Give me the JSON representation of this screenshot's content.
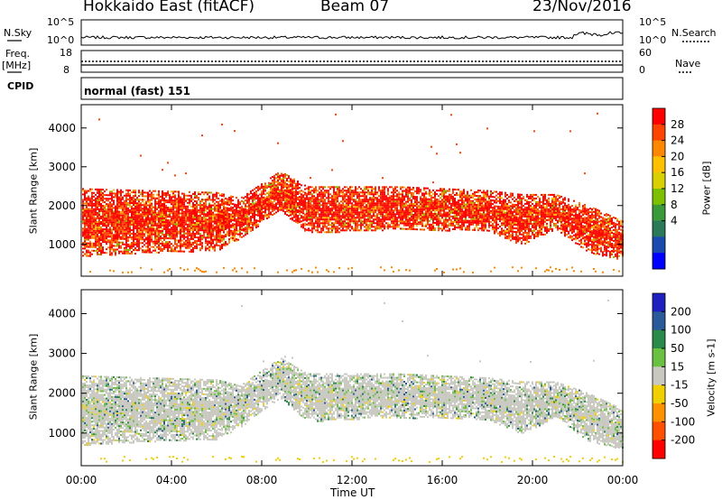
{
  "header": {
    "title_left": "Hokkaido East (fitACF)",
    "title_center": "Beam 07",
    "title_right": "23/Nov/2016"
  },
  "strips": {
    "nsky_label": "N.Sky",
    "nsky_ticks": [
      "10^5",
      "10^0"
    ],
    "nsearch_label": "N.Search",
    "nsearch_ticks": [
      "10^5",
      "10^0"
    ],
    "freq_label": "Freq.",
    "freq_unit": "[MHz]",
    "freq_ticks": [
      "18",
      "8"
    ],
    "nave_label": "Nave",
    "nave_ticks": [
      "60",
      "0"
    ],
    "cpid_label": "CPID",
    "cpid_value": "normal (fast) 151"
  },
  "chart_data": [
    {
      "type": "heatmap",
      "name": "power",
      "ylabel": "Slant Range [km]",
      "yticks": [
        "4000",
        "3000",
        "2000",
        "1000"
      ],
      "ylim": [
        180,
        4600
      ],
      "colorbar": {
        "label": "Power [dB]",
        "ticks": [
          "28",
          "24",
          "20",
          "16",
          "12",
          "8",
          "4"
        ],
        "colors": [
          "#ff0000",
          "#ff4400",
          "#ff8800",
          "#ffc000",
          "#d8d000",
          "#7cc000",
          "#3a9a3a",
          "#2a7a5a",
          "#1a4ab0",
          "#0000ff"
        ]
      },
      "bands": [
        {
          "hour": 0,
          "lower_km": 700,
          "upper_km": 2450
        },
        {
          "hour": 3,
          "lower_km": 800,
          "upper_km": 2400
        },
        {
          "hour": 6,
          "lower_km": 850,
          "upper_km": 2350
        },
        {
          "hour": 7,
          "lower_km": 1150,
          "upper_km": 2200
        },
        {
          "hour": 8.8,
          "lower_km": 1900,
          "upper_km": 2900
        },
        {
          "hour": 10,
          "lower_km": 1300,
          "upper_km": 2500
        },
        {
          "hour": 14,
          "lower_km": 1400,
          "upper_km": 2500
        },
        {
          "hour": 18,
          "lower_km": 1350,
          "upper_km": 2400
        },
        {
          "hour": 19.5,
          "lower_km": 1000,
          "upper_km": 2300
        },
        {
          "hour": 21,
          "lower_km": 1400,
          "upper_km": 2300
        },
        {
          "hour": 22.5,
          "lower_km": 800,
          "upper_km": 2000
        },
        {
          "hour": 24,
          "lower_km": 600,
          "upper_km": 1600
        }
      ]
    },
    {
      "type": "heatmap",
      "name": "velocity",
      "ylabel": "Slant Range [km]",
      "yticks": [
        "4000",
        "3000",
        "2000",
        "1000"
      ],
      "ylim": [
        180,
        4600
      ],
      "colorbar": {
        "label": "Velocity [m s-1]",
        "ticks": [
          "200",
          "100",
          "50",
          "15",
          "-15",
          "-50",
          "-100",
          "-200"
        ],
        "colors": [
          "#2020c0",
          "#2a5a9a",
          "#2a8a4a",
          "#6ac040",
          "#c8c8c0",
          "#f0d000",
          "#ff9000",
          "#ff5000",
          "#ff0000"
        ]
      },
      "bands": [
        {
          "hour": 0,
          "lower_km": 700,
          "upper_km": 2450
        },
        {
          "hour": 3,
          "lower_km": 800,
          "upper_km": 2400
        },
        {
          "hour": 6,
          "lower_km": 850,
          "upper_km": 2350
        },
        {
          "hour": 7,
          "lower_km": 1150,
          "upper_km": 2200
        },
        {
          "hour": 8.8,
          "lower_km": 1900,
          "upper_km": 2900
        },
        {
          "hour": 10,
          "lower_km": 1300,
          "upper_km": 2500
        },
        {
          "hour": 14,
          "lower_km": 1400,
          "upper_km": 2500
        },
        {
          "hour": 18,
          "lower_km": 1350,
          "upper_km": 2400
        },
        {
          "hour": 19.5,
          "lower_km": 1000,
          "upper_km": 2300
        },
        {
          "hour": 21,
          "lower_km": 1400,
          "upper_km": 2300
        },
        {
          "hour": 22.5,
          "lower_km": 800,
          "upper_km": 2000
        },
        {
          "hour": 24,
          "lower_km": 600,
          "upper_km": 1600
        }
      ]
    }
  ],
  "xaxis": {
    "label": "Time UT",
    "ticks": [
      "00:00",
      "04:00",
      "08:00",
      "12:00",
      "16:00",
      "20:00",
      "00:00"
    ],
    "xlim": [
      0,
      24
    ]
  }
}
